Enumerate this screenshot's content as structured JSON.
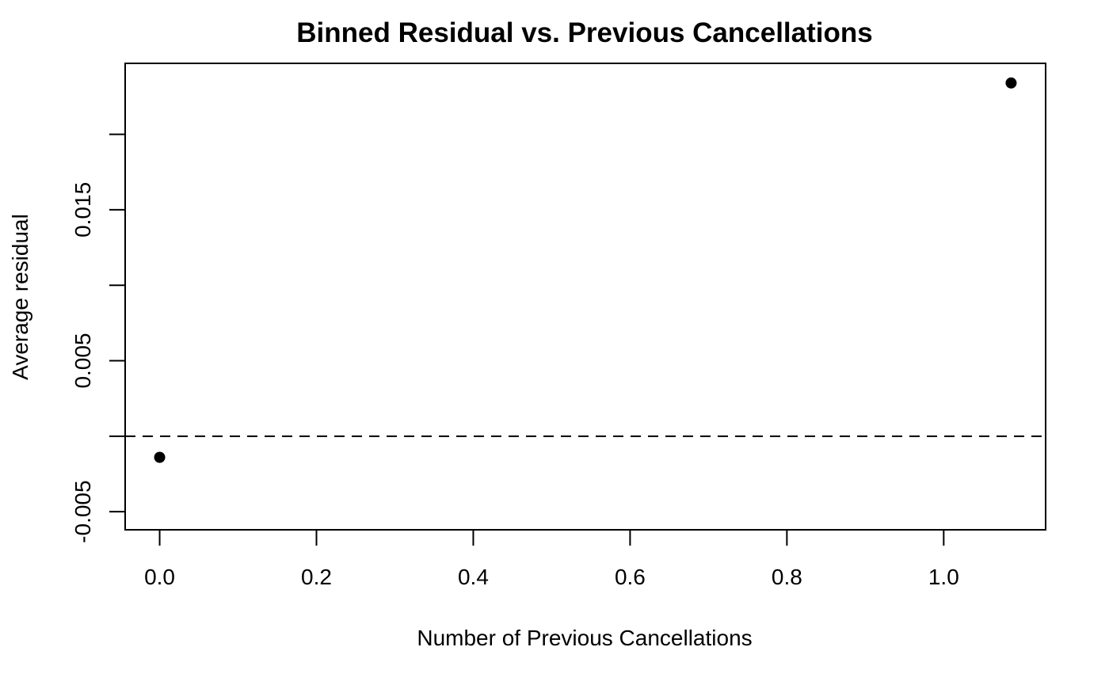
{
  "chart_data": {
    "type": "scatter",
    "title": "Binned Residual vs. Previous Cancellations",
    "xlabel": "Number of Previous Cancellations",
    "ylabel": "Average residual",
    "xlim": [
      -0.044,
      1.13
    ],
    "ylim": [
      -0.0062,
      0.0247
    ],
    "x_ticks": [
      0.0,
      0.2,
      0.4,
      0.6,
      0.8,
      1.0
    ],
    "x_tick_labels": [
      "0.0",
      "0.2",
      "0.4",
      "0.6",
      "0.8",
      "1.0"
    ],
    "y_ticks": [
      -0.005,
      0.0,
      0.005,
      0.01,
      0.015,
      0.02
    ],
    "y_tick_labels": [
      "-0.005",
      "",
      "0.005",
      "",
      "0.015",
      ""
    ],
    "reference_line": {
      "y": 0,
      "style": "dashed"
    },
    "points": [
      {
        "x": 0.0,
        "y": -0.0014
      },
      {
        "x": 1.086,
        "y": 0.0234
      }
    ],
    "point_color": "#000000"
  }
}
